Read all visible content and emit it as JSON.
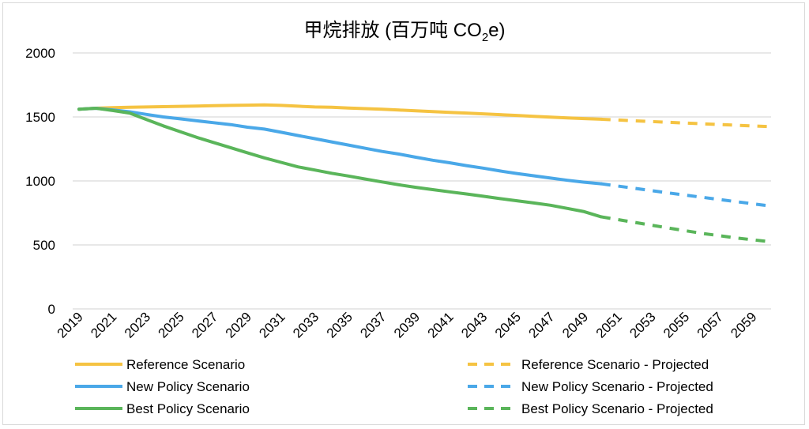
{
  "chart_data": {
    "type": "line",
    "title": "甲烷排放 (百万吨 CO",
    "title_sub": "2",
    "title_tail": "e)",
    "xlabel": "",
    "ylabel": "",
    "x": [
      2019,
      2020,
      2021,
      2022,
      2023,
      2024,
      2025,
      2026,
      2027,
      2028,
      2029,
      2030,
      2031,
      2032,
      2033,
      2034,
      2035,
      2036,
      2037,
      2038,
      2039,
      2040,
      2041,
      2042,
      2043,
      2044,
      2045,
      2046,
      2047,
      2048,
      2049,
      2050,
      2051,
      2052,
      2053,
      2054,
      2055,
      2056,
      2057,
      2058,
      2059,
      2060
    ],
    "x_tick_labels": [
      "2019",
      "2021",
      "2023",
      "2025",
      "2027",
      "2029",
      "2031",
      "2033",
      "2035",
      "2037",
      "2039",
      "2041",
      "2043",
      "2045",
      "2047",
      "2049",
      "2051",
      "2053",
      "2055",
      "2057",
      "2059"
    ],
    "y_ticks": [
      0,
      500,
      1000,
      1500,
      2000
    ],
    "ylim": [
      0,
      2000
    ],
    "grid": true,
    "legend_position": "bottom",
    "series": [
      {
        "name": "Reference Scenario",
        "color": "#f5c342",
        "dashed": false,
        "x": [
          2019,
          2020,
          2021,
          2022,
          2023,
          2024,
          2025,
          2026,
          2027,
          2028,
          2029,
          2030,
          2031,
          2032,
          2033,
          2034,
          2035,
          2036,
          2037,
          2038,
          2039,
          2040,
          2041,
          2042,
          2043,
          2044,
          2045,
          2046,
          2047,
          2048,
          2049,
          2050
        ],
        "values": [
          1560,
          1568,
          1572,
          1576,
          1578,
          1580,
          1583,
          1585,
          1588,
          1590,
          1592,
          1594,
          1590,
          1584,
          1578,
          1575,
          1570,
          1565,
          1560,
          1554,
          1548,
          1542,
          1536,
          1530,
          1524,
          1518,
          1512,
          1505,
          1498,
          1492,
          1487,
          1482
        ]
      },
      {
        "name": "New Policy Scenario",
        "color": "#4aa8e8",
        "dashed": false,
        "x": [
          2019,
          2020,
          2021,
          2022,
          2023,
          2024,
          2025,
          2026,
          2027,
          2028,
          2029,
          2030,
          2031,
          2032,
          2033,
          2034,
          2035,
          2036,
          2037,
          2038,
          2039,
          2040,
          2041,
          2042,
          2043,
          2044,
          2045,
          2046,
          2047,
          2048,
          2049,
          2050
        ],
        "values": [
          1560,
          1568,
          1555,
          1540,
          1520,
          1500,
          1485,
          1470,
          1455,
          1440,
          1420,
          1405,
          1380,
          1355,
          1330,
          1305,
          1280,
          1255,
          1230,
          1210,
          1185,
          1162,
          1142,
          1120,
          1100,
          1078,
          1058,
          1040,
          1022,
          1005,
          990,
          978
        ]
      },
      {
        "name": "Best Policy Scenario",
        "color": "#5ab55a",
        "dashed": false,
        "x": [
          2019,
          2020,
          2021,
          2022,
          2023,
          2024,
          2025,
          2026,
          2027,
          2028,
          2029,
          2030,
          2031,
          2032,
          2033,
          2034,
          2035,
          2036,
          2037,
          2038,
          2039,
          2040,
          2041,
          2042,
          2043,
          2044,
          2045,
          2046,
          2047,
          2048,
          2049,
          2050
        ],
        "values": [
          1560,
          1568,
          1550,
          1530,
          1480,
          1430,
          1385,
          1340,
          1300,
          1260,
          1220,
          1180,
          1145,
          1110,
          1085,
          1060,
          1038,
          1015,
          992,
          970,
          950,
          932,
          915,
          898,
          880,
          862,
          845,
          828,
          810,
          785,
          760,
          720
        ]
      },
      {
        "name": "Reference Scenario - Projected",
        "color": "#f5c342",
        "dashed": true,
        "x": [
          2050,
          2052,
          2054,
          2056,
          2058,
          2060
        ],
        "values": [
          1482,
          1470,
          1458,
          1446,
          1435,
          1424
        ]
      },
      {
        "name": "New Policy Scenario - Projected",
        "color": "#4aa8e8",
        "dashed": true,
        "x": [
          2050,
          2052,
          2054,
          2056,
          2058,
          2060
        ],
        "values": [
          978,
          942,
          906,
          872,
          838,
          805
        ]
      },
      {
        "name": "Best Policy Scenario - Projected",
        "color": "#5ab55a",
        "dashed": true,
        "x": [
          2050,
          2052,
          2054,
          2056,
          2058,
          2060
        ],
        "values": [
          720,
          676,
          632,
          590,
          555,
          525
        ]
      }
    ]
  }
}
